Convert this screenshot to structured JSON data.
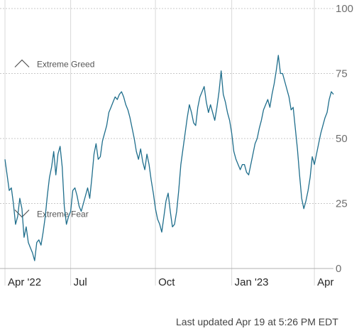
{
  "chart_data": {
    "type": "line",
    "series": [
      {
        "values": [
          [
            0,
            42
          ],
          [
            1,
            36
          ],
          [
            2,
            30
          ],
          [
            3,
            31
          ],
          [
            4,
            25
          ],
          [
            5,
            17
          ],
          [
            6,
            20
          ],
          [
            7,
            27
          ],
          [
            8,
            23
          ],
          [
            9,
            12
          ],
          [
            10,
            16
          ],
          [
            11,
            10
          ],
          [
            12,
            8
          ],
          [
            13,
            6
          ],
          [
            14,
            3
          ],
          [
            15,
            10
          ],
          [
            16,
            11
          ],
          [
            17,
            9
          ],
          [
            18,
            14
          ],
          [
            19,
            20
          ],
          [
            20,
            28
          ],
          [
            21,
            35
          ],
          [
            22,
            39
          ],
          [
            23,
            45
          ],
          [
            24,
            36
          ],
          [
            25,
            44
          ],
          [
            26,
            47
          ],
          [
            27,
            39
          ],
          [
            28,
            24
          ],
          [
            29,
            17
          ],
          [
            30,
            20
          ],
          [
            31,
            22
          ],
          [
            32,
            30
          ],
          [
            33,
            31
          ],
          [
            34,
            28
          ],
          [
            35,
            24
          ],
          [
            36,
            22
          ],
          [
            37,
            25
          ],
          [
            38,
            28
          ],
          [
            39,
            31
          ],
          [
            40,
            27
          ],
          [
            41,
            35
          ],
          [
            42,
            44
          ],
          [
            43,
            48
          ],
          [
            44,
            42
          ],
          [
            45,
            43
          ],
          [
            46,
            49
          ],
          [
            47,
            52
          ],
          [
            48,
            55
          ],
          [
            49,
            60
          ],
          [
            50,
            62
          ],
          [
            51,
            64
          ],
          [
            52,
            66
          ],
          [
            53,
            65
          ],
          [
            54,
            67
          ],
          [
            55,
            68
          ],
          [
            56,
            66
          ],
          [
            57,
            63
          ],
          [
            58,
            61
          ],
          [
            59,
            58
          ],
          [
            60,
            54
          ],
          [
            61,
            50
          ],
          [
            62,
            45
          ],
          [
            63,
            42
          ],
          [
            64,
            46
          ],
          [
            65,
            41
          ],
          [
            66,
            38
          ],
          [
            67,
            44
          ],
          [
            68,
            40
          ],
          [
            69,
            34
          ],
          [
            70,
            29
          ],
          [
            71,
            23
          ],
          [
            72,
            19
          ],
          [
            73,
            17
          ],
          [
            74,
            14
          ],
          [
            75,
            20
          ],
          [
            76,
            26
          ],
          [
            77,
            29
          ],
          [
            78,
            22
          ],
          [
            79,
            16
          ],
          [
            80,
            17
          ],
          [
            81,
            22
          ],
          [
            82,
            30
          ],
          [
            83,
            40
          ],
          [
            84,
            46
          ],
          [
            85,
            52
          ],
          [
            86,
            58
          ],
          [
            87,
            63
          ],
          [
            88,
            60
          ],
          [
            89,
            56
          ],
          [
            90,
            55
          ],
          [
            91,
            62
          ],
          [
            92,
            66
          ],
          [
            93,
            68
          ],
          [
            94,
            70
          ],
          [
            95,
            64
          ],
          [
            96,
            60
          ],
          [
            97,
            63
          ],
          [
            98,
            60
          ],
          [
            99,
            57
          ],
          [
            100,
            62
          ],
          [
            101,
            68
          ],
          [
            102,
            76
          ],
          [
            103,
            67
          ],
          [
            104,
            64
          ],
          [
            105,
            60
          ],
          [
            106,
            57
          ],
          [
            107,
            52
          ],
          [
            108,
            45
          ],
          [
            109,
            42
          ],
          [
            110,
            40
          ],
          [
            111,
            38
          ],
          [
            112,
            40
          ],
          [
            113,
            40
          ],
          [
            114,
            37
          ],
          [
            115,
            36
          ],
          [
            116,
            40
          ],
          [
            117,
            44
          ],
          [
            118,
            48
          ],
          [
            119,
            50
          ],
          [
            120,
            54
          ],
          [
            121,
            57
          ],
          [
            122,
            61
          ],
          [
            123,
            63
          ],
          [
            124,
            65
          ],
          [
            125,
            62
          ],
          [
            126,
            67
          ],
          [
            127,
            71
          ],
          [
            128,
            76
          ],
          [
            129,
            82
          ],
          [
            130,
            75
          ],
          [
            131,
            75
          ],
          [
            132,
            72
          ],
          [
            133,
            69
          ],
          [
            134,
            66
          ],
          [
            135,
            61
          ],
          [
            136,
            62
          ],
          [
            137,
            54
          ],
          [
            138,
            46
          ],
          [
            139,
            36
          ],
          [
            140,
            27
          ],
          [
            141,
            23
          ],
          [
            142,
            26
          ],
          [
            143,
            30
          ],
          [
            144,
            35
          ],
          [
            145,
            43
          ],
          [
            146,
            40
          ],
          [
            147,
            44
          ],
          [
            148,
            48
          ],
          [
            149,
            52
          ],
          [
            150,
            55
          ],
          [
            151,
            58
          ],
          [
            152,
            60
          ],
          [
            153,
            65
          ],
          [
            154,
            68
          ],
          [
            155,
            67
          ]
        ]
      }
    ],
    "x_ticks": [
      {
        "label": "Apr '22",
        "at": 0
      },
      {
        "label": "Jul",
        "at": 31
      },
      {
        "label": "Oct",
        "at": 71
      },
      {
        "label": "Jan '23",
        "at": 107
      },
      {
        "label": "Apr",
        "at": 146
      }
    ],
    "x_range": [
      0,
      155
    ],
    "ylim": [
      0,
      100
    ],
    "y_ticks": [
      "0",
      "25",
      "50",
      "75",
      "100"
    ],
    "grid": true,
    "annotations": [
      {
        "text": "Extreme Greed",
        "icon": "chevron-up-icon",
        "level": 75
      },
      {
        "text": "Extreme Fear",
        "icon": "chevron-down-icon",
        "level": 25
      }
    ],
    "colors": {
      "line": "#1f6e8c",
      "grid": "#c8c8c8"
    }
  },
  "footer": {
    "updated": "Last updated Apr 19 at 5:26 PM EDT"
  }
}
